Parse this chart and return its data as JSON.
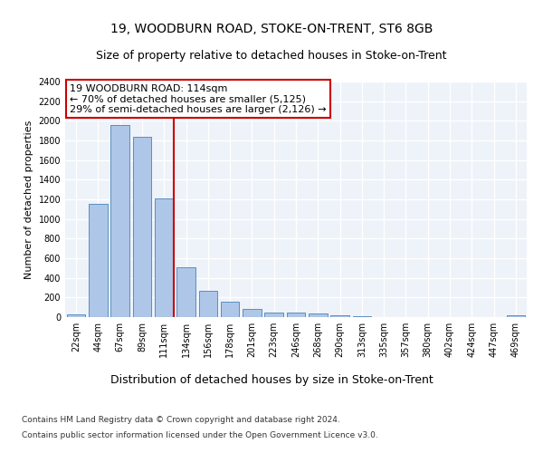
{
  "title1": "19, WOODBURN ROAD, STOKE-ON-TRENT, ST6 8GB",
  "title2": "Size of property relative to detached houses in Stoke-on-Trent",
  "xlabel": "Distribution of detached houses by size in Stoke-on-Trent",
  "ylabel": "Number of detached properties",
  "categories": [
    "22sqm",
    "44sqm",
    "67sqm",
    "89sqm",
    "111sqm",
    "134sqm",
    "156sqm",
    "178sqm",
    "201sqm",
    "223sqm",
    "246sqm",
    "268sqm",
    "290sqm",
    "313sqm",
    "335sqm",
    "357sqm",
    "380sqm",
    "402sqm",
    "424sqm",
    "447sqm",
    "469sqm"
  ],
  "values": [
    30,
    1150,
    1960,
    1840,
    1210,
    510,
    265,
    155,
    80,
    50,
    45,
    35,
    20,
    10,
    0,
    0,
    0,
    0,
    0,
    0,
    20
  ],
  "bar_color": "#aec6e8",
  "bar_edge_color": "#5a8fc0",
  "property_bin_index": 4,
  "vline_color": "#cc0000",
  "annotation_text": "19 WOODBURN ROAD: 114sqm\n← 70% of detached houses are smaller (5,125)\n29% of semi-detached houses are larger (2,126) →",
  "annotation_box_color": "#ffffff",
  "annotation_box_edge": "#cc0000",
  "footnote1": "Contains HM Land Registry data © Crown copyright and database right 2024.",
  "footnote2": "Contains public sector information licensed under the Open Government Licence v3.0.",
  "ylim": [
    0,
    2400
  ],
  "yticks": [
    0,
    200,
    400,
    600,
    800,
    1000,
    1200,
    1400,
    1600,
    1800,
    2000,
    2200,
    2400
  ],
  "title1_fontsize": 10,
  "title2_fontsize": 9,
  "xlabel_fontsize": 9,
  "ylabel_fontsize": 8,
  "tick_fontsize": 7,
  "annotation_fontsize": 8,
  "footnote_fontsize": 6.5,
  "bg_color": "#eef2f9",
  "fig_bg_color": "#ffffff",
  "grid_color": "#ffffff",
  "grid_linewidth": 1.0
}
